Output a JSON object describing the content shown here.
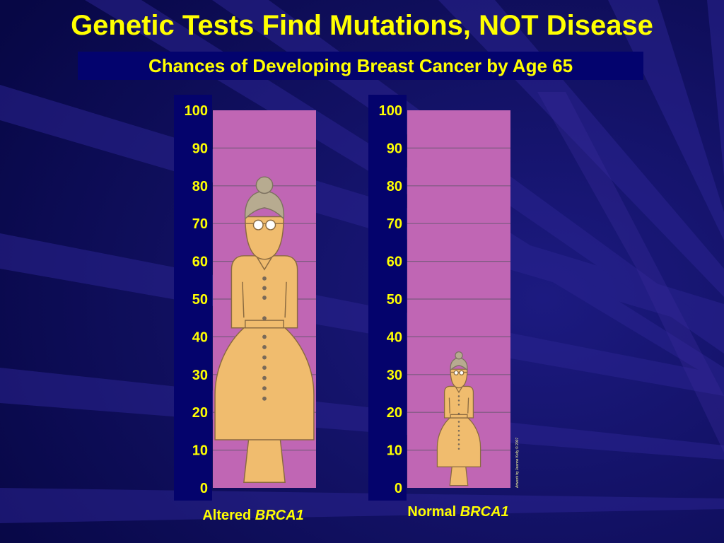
{
  "slide": {
    "title": "Genetic Tests Find Mutations, NOT Disease",
    "subtitle": "Chances of Developing Breast Cancer by Age 65",
    "credit": "Artwork by Jeanne Kelly © 2007"
  },
  "colors": {
    "background": "#0a0a4f",
    "text": "#ffff00",
    "panel": "#c066b4",
    "figure": "#f0bc6e",
    "hair": "#b7ab90",
    "label_box": "#03036e"
  },
  "chart_data": {
    "type": "bar",
    "title": "Chances of Developing Breast Cancer by Age 65",
    "categories": [
      "Altered BRCA1",
      "Normal BRCA1"
    ],
    "category_labels": [
      {
        "plain": "Altered ",
        "italic": "BRCA1"
      },
      {
        "plain": "Normal ",
        "italic": "BRCA1"
      }
    ],
    "values": [
      80,
      35
    ],
    "ylim": [
      0,
      100
    ],
    "yticks": [
      0,
      10,
      20,
      30,
      40,
      50,
      60,
      70,
      80,
      90,
      100
    ],
    "grid": true,
    "mark": "woman-figure"
  }
}
